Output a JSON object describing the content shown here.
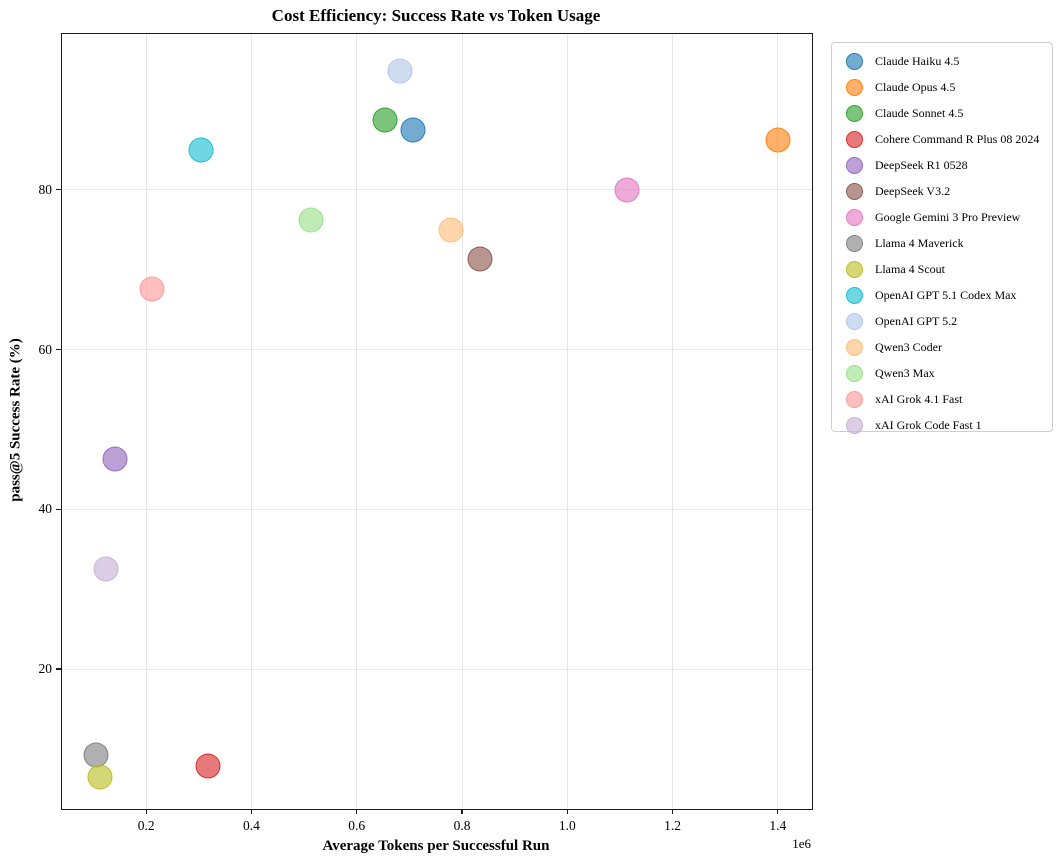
{
  "figure": {
    "background": "#ffffff",
    "spine_color": "#1a1a1a",
    "gridline_color": "#e7e7e7"
  },
  "chart_data": {
    "type": "scatter",
    "title": "Cost Efficiency: Success Rate vs Token Usage",
    "xlabel": "Average Tokens per Successful Run",
    "ylabel": "pass@5 Success Rate (%)",
    "x_scale_offset_label": "1e6",
    "xlim": [
      40000,
      1465000
    ],
    "ylim": [
      2.5,
      99.5
    ],
    "grid": true,
    "legend_position": "outside-right-top",
    "x_ticks": [
      {
        "value": 200000,
        "label": "0.2"
      },
      {
        "value": 400000,
        "label": "0.4"
      },
      {
        "value": 600000,
        "label": "0.6"
      },
      {
        "value": 800000,
        "label": "0.8"
      },
      {
        "value": 1000000,
        "label": "1.0"
      },
      {
        "value": 1200000,
        "label": "1.2"
      },
      {
        "value": 1400000,
        "label": "1.4"
      }
    ],
    "y_ticks": [
      {
        "value": 20,
        "label": "20"
      },
      {
        "value": 40,
        "label": "40"
      },
      {
        "value": 60,
        "label": "60"
      },
      {
        "value": 80,
        "label": "80"
      }
    ],
    "series": [
      {
        "name": "Claude Haiku 4.5",
        "color": "#1f77b4",
        "x": 707000,
        "y": 87.5
      },
      {
        "name": "Claude Opus 4.5",
        "color": "#ff7f0e",
        "x": 1400000,
        "y": 86.2
      },
      {
        "name": "Claude Sonnet 4.5",
        "color": "#2ca02c",
        "x": 653000,
        "y": 88.7
      },
      {
        "name": "Cohere Command R Plus 08 2024",
        "color": "#d62728",
        "x": 318000,
        "y": 7.9
      },
      {
        "name": "DeepSeek R1 0528",
        "color": "#9467bd",
        "x": 141000,
        "y": 46.3
      },
      {
        "name": "DeepSeek V3.2",
        "color": "#8c564b",
        "x": 834000,
        "y": 71.3
      },
      {
        "name": "Google Gemini 3 Pro Preview",
        "color": "#e377c2",
        "x": 1114000,
        "y": 80.0
      },
      {
        "name": "Llama 4 Maverick",
        "color": "#7f7f7f",
        "x": 104000,
        "y": 9.2
      },
      {
        "name": "Llama 4 Scout",
        "color": "#bcbd22",
        "x": 112000,
        "y": 6.5
      },
      {
        "name": "OpenAI GPT 5.1 Codex Max",
        "color": "#17becf",
        "x": 304000,
        "y": 85.0
      },
      {
        "name": "OpenAI GPT 5.2",
        "color": "#aec7e8",
        "x": 682000,
        "y": 94.9
      },
      {
        "name": "Qwen3 Coder",
        "color": "#ffbb78",
        "x": 779000,
        "y": 75.0
      },
      {
        "name": "Qwen3 Max",
        "color": "#98df8a",
        "x": 514000,
        "y": 76.2
      },
      {
        "name": "xAI Grok 4.1 Fast",
        "color": "#ff9896",
        "x": 211000,
        "y": 67.6
      },
      {
        "name": "xAI Grok Code Fast 1",
        "color": "#c5b0d5",
        "x": 124000,
        "y": 32.5
      }
    ]
  }
}
